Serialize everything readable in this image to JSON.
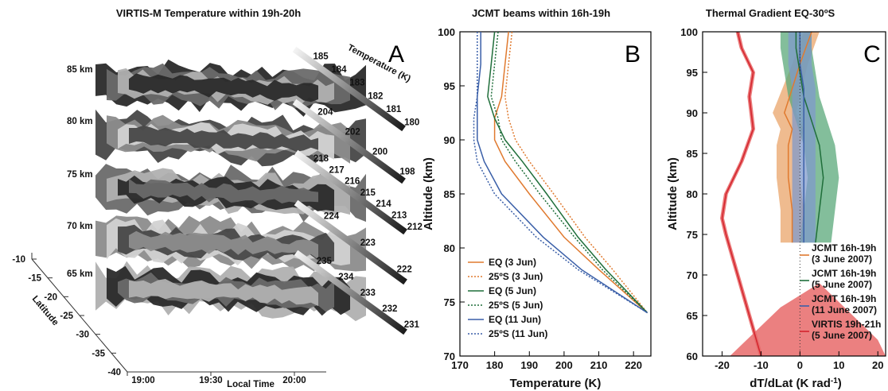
{
  "panel_a": {
    "title": "VIRTIS-M Temperature within 19h-20h",
    "letter": "A",
    "layers": [
      {
        "label": "85 km",
        "colorbar_ticks": [
          "185",
          "184",
          "183",
          "182",
          "181",
          "180"
        ]
      },
      {
        "label": "80 km",
        "colorbar_ticks": [
          "204",
          "202",
          "200",
          "198"
        ]
      },
      {
        "label": "75 km",
        "colorbar_ticks": [
          "218",
          "217",
          "216",
          "215",
          "214",
          "213",
          "212"
        ]
      },
      {
        "label": "70 km",
        "colorbar_ticks": [
          "224",
          "223",
          "222"
        ]
      },
      {
        "label": "65 km",
        "colorbar_ticks": [
          "235",
          "234",
          "233",
          "232",
          "231"
        ]
      }
    ],
    "colorbar_label": "Temperature (K)",
    "x_axis": {
      "label": "Local Time",
      "ticks": [
        "19:00",
        "19:30",
        "20:00"
      ]
    },
    "y_axis": {
      "label": "Latitude",
      "ticks": [
        "-10",
        "-15",
        "-20",
        "-25",
        "-30",
        "-35",
        "-40"
      ]
    }
  },
  "chart_data": [
    {
      "type": "line",
      "title": "JCMT beams within 16h-19h",
      "letter": "B",
      "xlabel": "Temperature (K)",
      "ylabel": "Altitude (km)",
      "xlim": [
        170,
        225
      ],
      "ylim": [
        70,
        100
      ],
      "xticks": [
        "170",
        "180",
        "190",
        "200",
        "210",
        "220"
      ],
      "yticks": [
        "70",
        "75",
        "80",
        "85",
        "90",
        "95",
        "100"
      ],
      "legend_position": "lower-left",
      "series": [
        {
          "name": "EQ (3 Jun)",
          "color": "#e07a2f",
          "dash": "solid",
          "points": [
            [
              184,
              100
            ],
            [
              183,
              97
            ],
            [
              182,
              94
            ],
            [
              180,
              92
            ],
            [
              180,
              90
            ],
            [
              183,
              88
            ],
            [
              190,
              85
            ],
            [
              200,
              81
            ],
            [
              210,
              78
            ],
            [
              224,
              74
            ]
          ]
        },
        {
          "name": "25ºS (3 Jun)",
          "color": "#e07a2f",
          "dash": "dotted",
          "points": [
            [
              185,
              100
            ],
            [
              184,
              97
            ],
            [
              183,
              94
            ],
            [
              184,
              92
            ],
            [
              186,
              90
            ],
            [
              190,
              88
            ],
            [
              197,
              85
            ],
            [
              206,
              81
            ],
            [
              214,
              78
            ],
            [
              224,
              74
            ]
          ]
        },
        {
          "name": "EQ (5 Jun)",
          "color": "#1f6e3a",
          "dash": "solid",
          "points": [
            [
              180,
              100
            ],
            [
              179,
              97
            ],
            [
              178,
              94
            ],
            [
              180,
              92
            ],
            [
              183,
              90
            ],
            [
              188,
              88
            ],
            [
              195,
              85
            ],
            [
              204,
              81
            ],
            [
              212,
              78
            ],
            [
              224,
              74
            ]
          ]
        },
        {
          "name": "25ºS (5 Jun)",
          "color": "#1f6e3a",
          "dash": "dotted",
          "points": [
            [
              181,
              100
            ],
            [
              180,
              97
            ],
            [
              179,
              94
            ],
            [
              181,
              92
            ],
            [
              182,
              90
            ],
            [
              186,
              88
            ],
            [
              193,
              85
            ],
            [
              203,
              81
            ],
            [
              211,
              78
            ],
            [
              224,
              74
            ]
          ]
        },
        {
          "name": "EQ (11 Jun)",
          "color": "#3a5fa8",
          "dash": "solid",
          "points": [
            [
              176,
              100
            ],
            [
              176,
              97
            ],
            [
              175,
              94
            ],
            [
              175,
              92
            ],
            [
              175,
              90
            ],
            [
              177,
              88
            ],
            [
              182,
              85
            ],
            [
              194,
              81
            ],
            [
              205,
              78
            ],
            [
              224,
              74
            ]
          ]
        },
        {
          "name": "25ºS (11 Jun)",
          "color": "#3a5fa8",
          "dash": "dotted",
          "points": [
            [
              175,
              100
            ],
            [
              175,
              97
            ],
            [
              175,
              94
            ],
            [
              174,
              92
            ],
            [
              174,
              90
            ],
            [
              175,
              88
            ],
            [
              180,
              85
            ],
            [
              192,
              81
            ],
            [
              204,
              78
            ],
            [
              224,
              74
            ]
          ]
        }
      ]
    },
    {
      "type": "line",
      "title": "Thermal Gradient EQ-30ºS",
      "letter": "C",
      "xlabel": "dT/dLat (K rad",
      "xlabel_sup": "-1",
      "xlabel_close": ")",
      "ylabel": "Altitude (km)",
      "xlim": [
        -25,
        22
      ],
      "ylim": [
        60,
        100
      ],
      "xticks": [
        "-20",
        "-10",
        "0",
        "10",
        "20"
      ],
      "yticks": [
        "60",
        "65",
        "70",
        "75",
        "80",
        "85",
        "90",
        "95",
        "100"
      ],
      "legend_position": "lower-right",
      "series": [
        {
          "name": "JCMT 16h-19h",
          "sub": "(3 June 2007)",
          "color": "#e07a2f",
          "band": "#eaa46a",
          "points": [
            [
              -2,
              74
            ],
            [
              -2,
              78
            ],
            [
              -3,
              82
            ],
            [
              -3,
              86
            ],
            [
              -2,
              88
            ],
            [
              -4,
              90
            ],
            [
              -2,
              93
            ],
            [
              0,
              96
            ],
            [
              3,
              100
            ]
          ],
          "half_width": [
            3,
            3,
            3,
            3,
            3,
            3,
            2.5,
            2,
            2
          ]
        },
        {
          "name": "JCMT 16h-19h",
          "sub": "(5 June 2007)",
          "color": "#1f6e3a",
          "band": "#5aa87a",
          "points": [
            [
              4,
              74
            ],
            [
              5,
              78
            ],
            [
              6,
              82
            ],
            [
              5,
              86
            ],
            [
              3,
              89
            ],
            [
              1,
              92
            ],
            [
              0,
              95
            ],
            [
              -1,
              98
            ],
            [
              -1,
              100
            ]
          ],
          "half_width": [
            4,
            4,
            4,
            4,
            4,
            4,
            4,
            4,
            4
          ]
        },
        {
          "name": "JCMT 16h-19h",
          "sub": "(11 June 2007)",
          "color": "#3a5fa8",
          "band": "#7f9acb",
          "points": [
            [
              1,
              74
            ],
            [
              1,
              78
            ],
            [
              1,
              82
            ],
            [
              1,
              86
            ],
            [
              1,
              90
            ],
            [
              1,
              93
            ],
            [
              0,
              96
            ],
            [
              0,
              98
            ],
            [
              0,
              100
            ]
          ],
          "half_width": [
            3,
            3,
            3,
            3,
            3,
            3,
            3,
            3,
            3
          ]
        },
        {
          "name": "VIRTIS 19h-21h",
          "sub": "(5 June 2007)",
          "color": "#d4242d",
          "band": "#e86a6a",
          "points": [
            [
              -10,
              60
            ],
            [
              -13,
              65
            ],
            [
              -16,
              70
            ],
            [
              -19,
              75
            ],
            [
              -20,
              77
            ],
            [
              -19,
              80
            ],
            [
              -15,
              84
            ],
            [
              -12,
              88
            ],
            [
              -13,
              92
            ],
            [
              -12,
              95
            ],
            [
              -15,
              98
            ],
            [
              -16,
              100
            ]
          ],
          "half_width": [
            0.5,
            0.5,
            0.5,
            0.5,
            0.5,
            0.5,
            0.5,
            0.5,
            0.5,
            0.5,
            0.5,
            0.5
          ]
        }
      ],
      "red_fill_outline": [
        [
          -18,
          60
        ],
        [
          -5,
          66
        ],
        [
          5,
          69
        ],
        [
          20,
          62
        ],
        [
          22,
          60
        ]
      ]
    }
  ]
}
